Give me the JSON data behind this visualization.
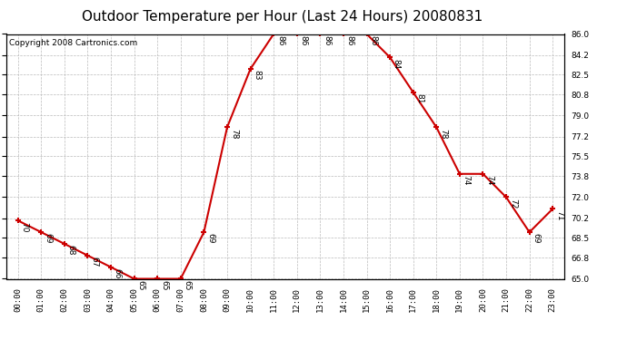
{
  "title": "Outdoor Temperature per Hour (Last 24 Hours) 20080831",
  "copyright": "Copyright 2008 Cartronics.com",
  "hours": [
    "00:00",
    "01:00",
    "02:00",
    "03:00",
    "04:00",
    "05:00",
    "06:00",
    "07:00",
    "08:00",
    "09:00",
    "10:00",
    "11:00",
    "12:00",
    "13:00",
    "14:00",
    "15:00",
    "16:00",
    "17:00",
    "18:00",
    "19:00",
    "20:00",
    "21:00",
    "22:00",
    "23:00"
  ],
  "temps": [
    70,
    69,
    68,
    67,
    66,
    65,
    65,
    65,
    69,
    78,
    83,
    86,
    86,
    86,
    86,
    86,
    84,
    81,
    78,
    74,
    74,
    72,
    69,
    71
  ],
  "ylim": [
    65.0,
    86.0
  ],
  "yticks": [
    65.0,
    66.8,
    68.5,
    70.2,
    72.0,
    73.8,
    75.5,
    77.2,
    79.0,
    80.8,
    82.5,
    84.2,
    86.0
  ],
  "line_color": "#cc0000",
  "marker_color": "#cc0000",
  "bg_color": "#ffffff",
  "grid_color": "#bbbbbb",
  "title_fontsize": 11,
  "label_fontsize": 6.5,
  "copyright_fontsize": 6.5
}
